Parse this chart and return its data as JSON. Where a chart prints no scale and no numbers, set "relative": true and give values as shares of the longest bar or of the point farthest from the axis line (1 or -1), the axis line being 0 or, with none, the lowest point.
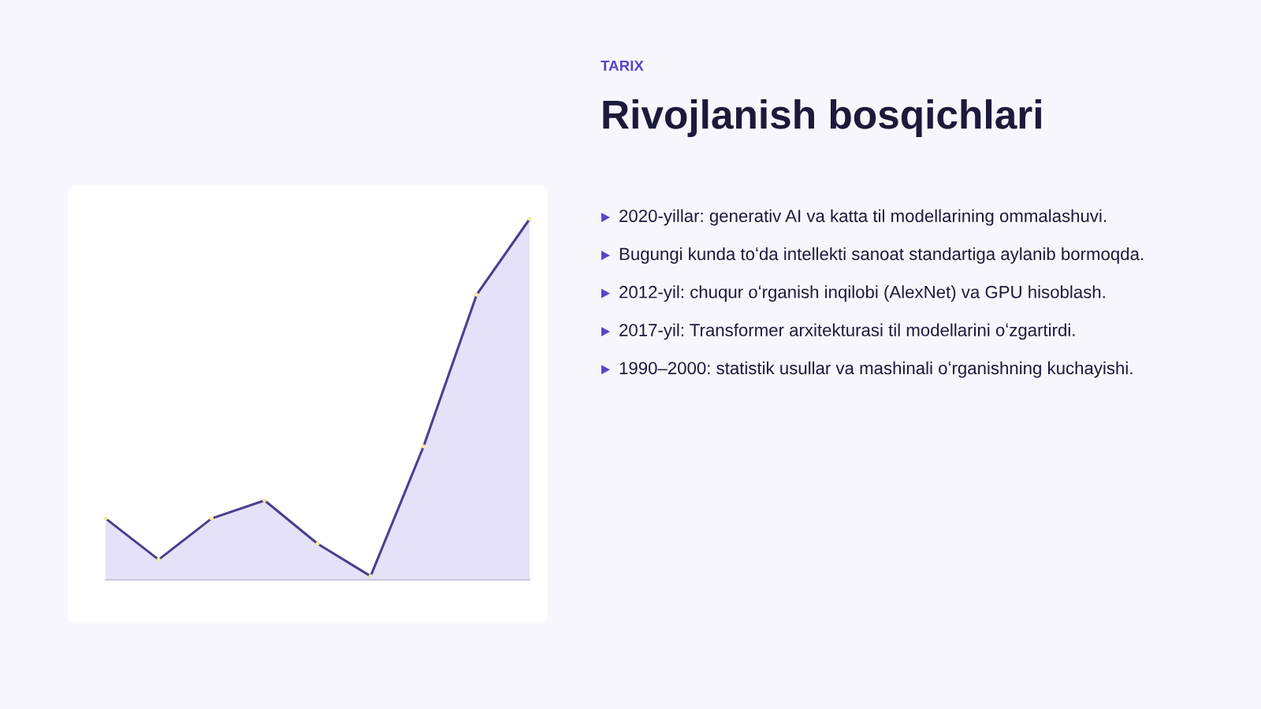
{
  "chart_data": [
    {
      "type": "area",
      "relative": true,
      "categories": [
        null,
        null,
        null,
        null,
        null,
        null,
        null,
        null,
        null
      ],
      "series": [
        {
          "color": "#4b3f8f",
          "values": [
            0.17,
            0.056,
            0.17,
            0.22,
            0.1,
            0.01,
            0.37,
            0.79,
            1
          ]
        }
      ],
      "marker": "circle",
      "grid": false
    },
    {
      "type": "other",
      "subtitle": "TARIX",
      "title": "Rivojlanish bosqichlari",
      "annotations": [
        "2020-yillar: generativ AI va katta til modellarining ommalashuvi.",
        "Bugungi kunda toʻda intellekti sanoat standartiga aylanib bormoqda.",
        "2012-yil: chuqur oʻrganish inqilobi (AlexNet) va GPU hisoblash.",
        "2017-yil: Transformer arxitekturasi til modellarini oʻzgartirdi.",
        "1990–2000: statistik usullar va mashinali oʻrganishning kuchayishi."
      ]
    }
  ]
}
